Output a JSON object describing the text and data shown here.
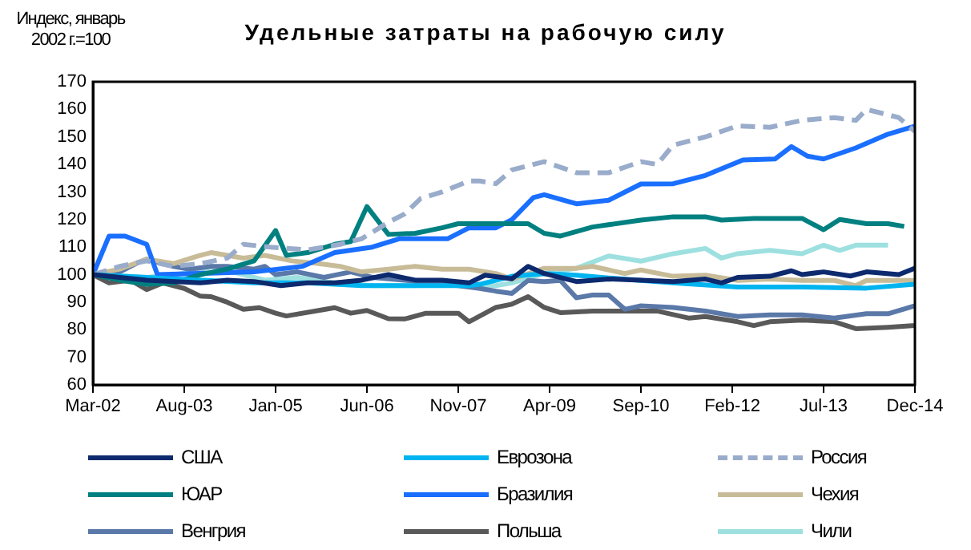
{
  "chart_data": {
    "type": "line",
    "title": "Удельные затраты на рабочую силу",
    "ylabel": "Индекс, январь 2002 г.=100",
    "xlim": [
      "2002-03",
      "2014-12"
    ],
    "xticks": [
      {
        "value": "2002-03",
        "label": "Mar-02"
      },
      {
        "value": "2003-08",
        "label": "Aug-03"
      },
      {
        "value": "2005-01",
        "label": "Jan-05"
      },
      {
        "value": "2006-06",
        "label": "Jun-06"
      },
      {
        "value": "2007-11",
        "label": "Nov-07"
      },
      {
        "value": "2009-04",
        "label": "Apr-09"
      },
      {
        "value": "2010-09",
        "label": "Sep-10"
      },
      {
        "value": "2012-02",
        "label": "Feb-12"
      },
      {
        "value": "2013-07",
        "label": "Jul-13"
      },
      {
        "value": "2014-12",
        "label": "Dec-14"
      }
    ],
    "ylim": [
      60,
      170
    ],
    "yticks": [
      60,
      70,
      80,
      90,
      100,
      110,
      120,
      130,
      140,
      150,
      160,
      170
    ],
    "grid": false,
    "legend": "bottom",
    "marker": "none",
    "line_style": "solid",
    "series": [
      {
        "name": "США",
        "color": "#0d2a6e",
        "x": [
          "2002-03",
          "2002-08",
          "2003-01",
          "2003-11",
          "2004-04",
          "2004-09",
          "2005-02",
          "2005-07",
          "2005-12",
          "2006-05",
          "2006-10",
          "2007-03",
          "2007-08",
          "2008-01",
          "2008-04",
          "2008-09",
          "2008-12",
          "2009-03",
          "2009-09",
          "2010-03",
          "2010-09",
          "2011-03",
          "2011-09",
          "2011-12",
          "2012-03",
          "2012-09",
          "2013-01",
          "2013-03",
          "2013-07",
          "2013-12",
          "2014-03",
          "2014-09",
          "2014-12"
        ],
        "values": [
          100,
          99,
          98,
          97,
          98,
          97.5,
          96,
          97,
          97,
          98,
          100,
          98,
          98,
          97,
          99.8,
          98.5,
          103,
          100.4,
          97.5,
          98.4,
          98,
          97.5,
          98.4,
          97,
          99,
          99.4,
          101.4,
          100,
          101,
          99.5,
          101,
          100,
          102.3
        ]
      },
      {
        "name": "Еврозона",
        "color": "#00b4f0",
        "x": [
          "2002-03",
          "2003-01",
          "2003-11",
          "2004-09",
          "2005-07",
          "2006-05",
          "2007-03",
          "2008-01",
          "2008-03",
          "2008-09",
          "2009-03",
          "2009-09",
          "2010-03",
          "2010-09",
          "2011-03",
          "2012-03",
          "2013-03",
          "2014-03",
          "2014-12"
        ],
        "values": [
          100,
          99,
          98,
          97,
          97,
          96,
          96,
          96,
          96.5,
          99.4,
          100.4,
          99.8,
          98.8,
          97.9,
          97,
          95.5,
          95.5,
          95.1,
          96.5
        ]
      },
      {
        "name": "Россия",
        "color": "#9aaccb",
        "line_style": "dashed",
        "x": [
          "2002-03",
          "2002-08",
          "2003-01",
          "2003-06",
          "2003-11",
          "2004-04",
          "2004-07",
          "2004-12",
          "2005-07",
          "2006-01",
          "2006-05",
          "2006-10",
          "2007-01",
          "2007-04",
          "2007-08",
          "2008-01",
          "2008-03",
          "2008-06",
          "2008-09",
          "2009-03",
          "2009-09",
          "2010-03",
          "2010-09",
          "2010-12",
          "2011-03",
          "2011-09",
          "2012-03",
          "2012-09",
          "2013-03",
          "2013-09",
          "2014-01",
          "2014-03",
          "2014-09",
          "2014-12"
        ],
        "values": [
          100,
          103,
          105,
          103,
          104,
          106,
          111,
          110,
          109,
          111,
          113,
          119,
          122,
          127.6,
          130,
          134,
          134,
          133,
          138,
          141,
          137,
          137,
          141,
          140,
          147,
          150,
          154,
          153.5,
          156,
          157,
          156,
          160,
          157,
          152
        ]
      },
      {
        "name": "ЮАР",
        "color": "#008080",
        "x": [
          "2002-03",
          "2002-08",
          "2003-01",
          "2003-06",
          "2003-11",
          "2004-04",
          "2004-09",
          "2005-01",
          "2005-03",
          "2005-07",
          "2005-12",
          "2006-03",
          "2006-06",
          "2006-10",
          "2007-03",
          "2007-08",
          "2007-11",
          "2008-03",
          "2008-12",
          "2009-03",
          "2009-06",
          "2009-12",
          "2010-09",
          "2011-03",
          "2011-09",
          "2011-12",
          "2012-06",
          "2013-03",
          "2013-07",
          "2013-10",
          "2014-03",
          "2014-07",
          "2014-10"
        ],
        "values": [
          100,
          98,
          96.5,
          97,
          100,
          102,
          105,
          116,
          107,
          108,
          111,
          112,
          124.7,
          114.6,
          115,
          117,
          118.5,
          118.5,
          118.5,
          115,
          114,
          117.3,
          119.8,
          121,
          121,
          119.8,
          120.4,
          120.4,
          116.3,
          120,
          118.5,
          118.5,
          117.5
        ]
      },
      {
        "name": "Бразилия",
        "color": "#1a6fff",
        "x": [
          "2002-03",
          "2002-06",
          "2002-09",
          "2003-01",
          "2003-03",
          "2004-09",
          "2005-06",
          "2005-12",
          "2006-07",
          "2006-12",
          "2007-09",
          "2008-01",
          "2008-06",
          "2008-09",
          "2009-01",
          "2009-03",
          "2009-09",
          "2010-03",
          "2010-09",
          "2011-03",
          "2011-09",
          "2012-04",
          "2012-10",
          "2013-01",
          "2013-04",
          "2013-07",
          "2014-01",
          "2014-07",
          "2014-12"
        ],
        "values": [
          100,
          114,
          114,
          111,
          100,
          101,
          103,
          108,
          110,
          113,
          113,
          117,
          117,
          120,
          128,
          129,
          125.7,
          127,
          132.9,
          133,
          136,
          141.6,
          142,
          146.5,
          143,
          142,
          146,
          151,
          153.9
        ]
      },
      {
        "name": "Чехия",
        "color": "#c8bc98",
        "x": [
          "2002-03",
          "2002-08",
          "2003-01",
          "2003-06",
          "2003-11",
          "2004-01",
          "2004-07",
          "2004-11",
          "2005-04",
          "2005-09",
          "2006-01",
          "2006-05",
          "2006-10",
          "2007-03",
          "2007-08",
          "2008-01",
          "2008-06",
          "2008-09",
          "2009-03",
          "2009-09",
          "2009-12",
          "2010-06",
          "2010-09",
          "2011-03",
          "2011-09",
          "2012-03",
          "2012-09",
          "2013-03",
          "2013-09",
          "2014-01",
          "2014-03",
          "2014-12"
        ],
        "values": [
          100,
          102,
          105.6,
          104,
          107,
          108,
          106,
          107,
          105,
          104,
          103,
          101,
          102,
          103,
          102,
          102,
          100.4,
          98.4,
          102.3,
          102.3,
          103,
          100.4,
          101.7,
          99.4,
          99.8,
          97.9,
          98.4,
          97.9,
          97.9,
          96,
          97.9,
          97.9
        ]
      },
      {
        "name": "Венгрия",
        "color": "#5a78a8",
        "x": [
          "2002-03",
          "2002-08",
          "2002-11",
          "2003-01",
          "2003-06",
          "2003-09",
          "2004-01",
          "2004-04",
          "2004-09",
          "2004-11",
          "2005-01",
          "2005-05",
          "2005-10",
          "2006-03",
          "2006-07",
          "2007-01",
          "2007-05",
          "2007-11",
          "2008-03",
          "2008-06",
          "2008-09",
          "2008-12",
          "2009-03",
          "2009-06",
          "2009-09",
          "2009-12",
          "2010-03",
          "2010-06",
          "2010-09",
          "2011-03",
          "2011-09",
          "2012-03",
          "2012-09",
          "2013-03",
          "2013-09",
          "2014-03",
          "2014-07",
          "2014-12"
        ],
        "values": [
          100,
          101,
          104,
          105.6,
          103,
          102,
          103,
          103,
          102,
          103,
          100,
          101,
          99,
          101,
          99,
          98,
          97,
          96,
          95,
          94,
          93.2,
          97.9,
          97.5,
          97.9,
          91.6,
          92.6,
          92.6,
          87.4,
          88.7,
          88.1,
          86.8,
          84.8,
          85.4,
          85.4,
          84.2,
          85.8,
          85.8,
          88.7
        ]
      },
      {
        "name": "Польша",
        "color": "#595959",
        "x": [
          "2002-03",
          "2002-06",
          "2002-10",
          "2003-01",
          "2003-04",
          "2003-08",
          "2003-11",
          "2004-01",
          "2004-04",
          "2004-07",
          "2004-10",
          "2005-01",
          "2005-03",
          "2005-09",
          "2005-12",
          "2006-03",
          "2006-06",
          "2006-10",
          "2007-01",
          "2007-05",
          "2007-09",
          "2007-11",
          "2008-01",
          "2008-04",
          "2008-06",
          "2008-09",
          "2008-12",
          "2009-03",
          "2009-06",
          "2009-12",
          "2010-06",
          "2010-12",
          "2011-06",
          "2011-09",
          "2012-03",
          "2012-06",
          "2012-09",
          "2013-03",
          "2013-09",
          "2014-01",
          "2014-07",
          "2014-12"
        ],
        "values": [
          100,
          97,
          98,
          94.6,
          97,
          95,
          92.2,
          92,
          90,
          87.4,
          88,
          86,
          85,
          87,
          88,
          86,
          87,
          84,
          83.9,
          86,
          86,
          86,
          82.9,
          86,
          88.1,
          89.3,
          92,
          88.1,
          86.2,
          86.8,
          86.8,
          86.8,
          84.2,
          84.8,
          82.9,
          81.5,
          82.9,
          83.5,
          82.9,
          80.4,
          80.9,
          81.5
        ]
      },
      {
        "name": "Чили",
        "color": "#9ee0e0",
        "x": [
          "2002-03",
          "2003-01",
          "2003-06",
          "2003-11",
          "2004-01",
          "2004-07",
          "2004-11",
          "2005-05",
          "2005-12",
          "2006-07",
          "2007-03",
          "2007-08",
          "2008-01",
          "2008-06",
          "2008-09",
          "2009-03",
          "2009-09",
          "2010-03",
          "2010-09",
          "2011-03",
          "2011-09",
          "2011-12",
          "2012-03",
          "2012-09",
          "2013-03",
          "2013-07",
          "2013-10",
          "2014-01",
          "2014-07"
        ],
        "values": [
          100,
          99,
          100,
          101,
          103,
          100,
          98,
          99,
          97,
          96,
          96,
          97,
          96,
          96,
          97,
          100.4,
          102.3,
          106.8,
          104.9,
          107.6,
          109.5,
          106,
          107.6,
          108.8,
          107.6,
          110.7,
          108.8,
          110.7,
          110.7
        ]
      }
    ]
  }
}
